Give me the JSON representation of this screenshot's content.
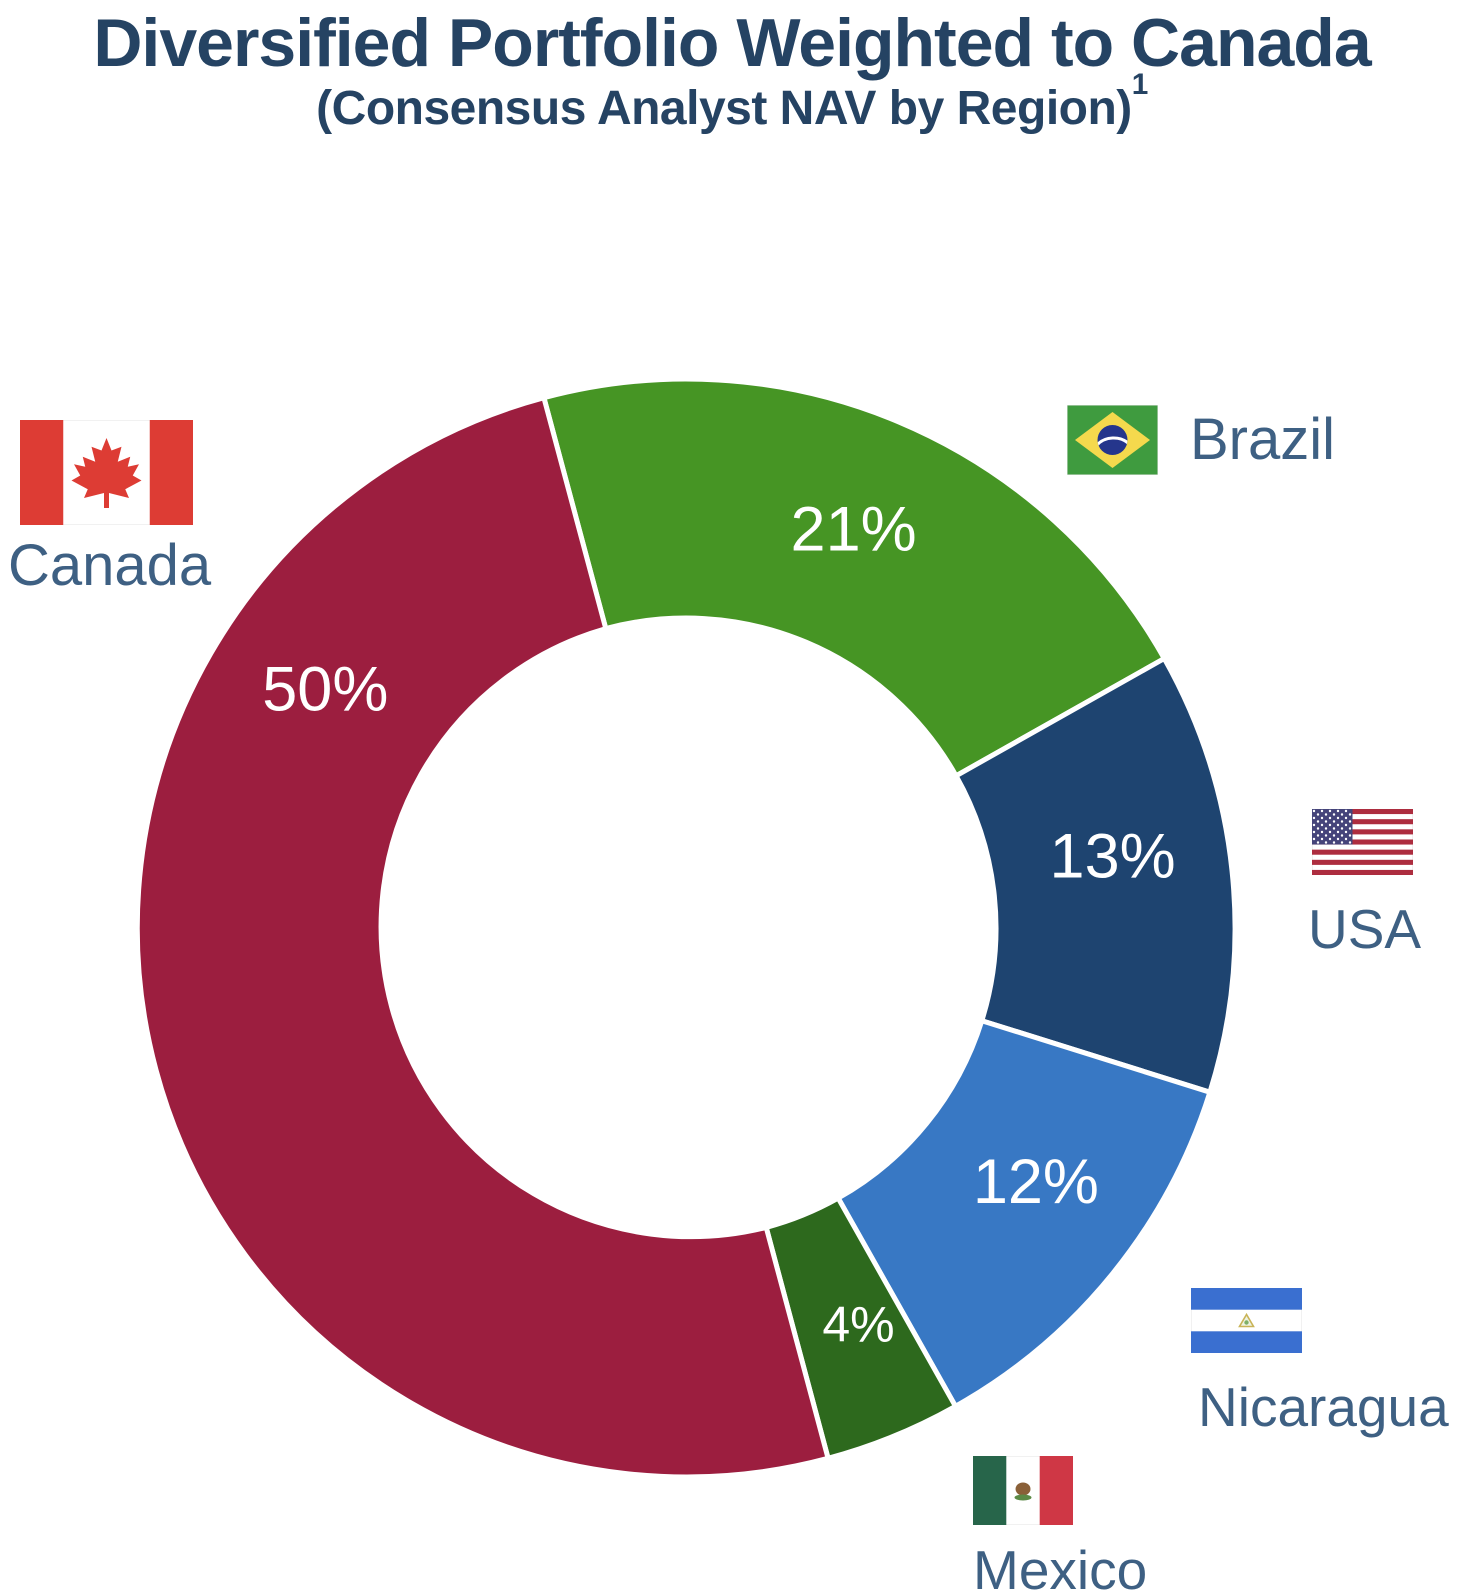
{
  "chart_data": {
    "type": "pie",
    "variant": "donut",
    "title": "Diversified Portfolio Weighted to Canada",
    "subtitle": "(Consensus Analyst NAV by Region)",
    "footnote_marker": "1",
    "unit": "%",
    "direction": "clockwise",
    "start_angle_deg": -15,
    "inner_radius_ratio": 0.565,
    "background": "#ffffff",
    "title_color": "#254363",
    "legend_label_color": "#3e6083",
    "slice_label_color": "#ffffff",
    "segments": [
      {
        "label": "Brazil",
        "value": 21,
        "color": "#469524"
      },
      {
        "label": "USA",
        "value": 13,
        "color": "#1e4470",
        "label_angle_deg": 80.5
      },
      {
        "label": "Nicaragua",
        "value": 12,
        "color": "#3878c4",
        "label_angle_deg": 126.0
      },
      {
        "label": "Mexico",
        "value": 4,
        "color": "#2d691d",
        "label_angle_deg": 156.5
      },
      {
        "label": "Canada",
        "value": 50,
        "color": "#9c1e3f",
        "label_angle_deg": -56.5
      }
    ]
  }
}
